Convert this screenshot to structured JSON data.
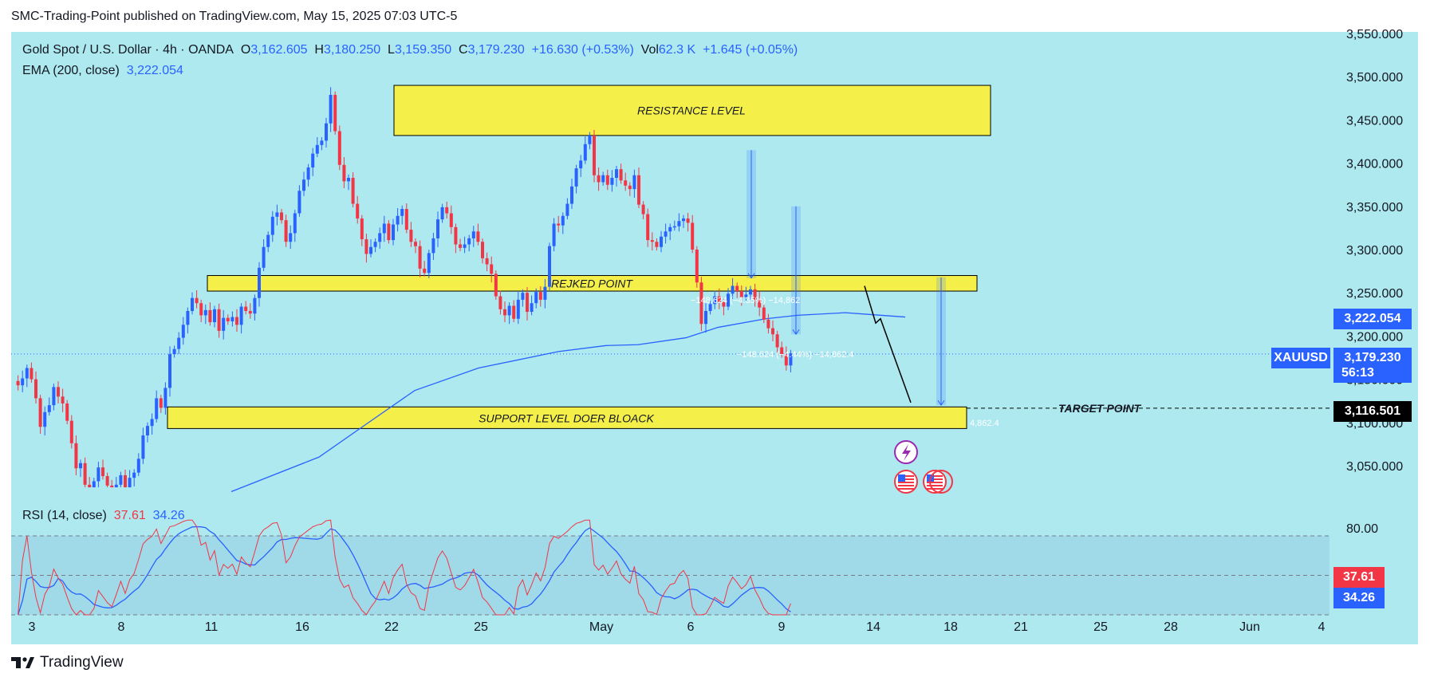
{
  "header": {
    "published_line": "SMC-Trading-Point published on TradingView.com, May 15, 2025 07:03 UTC-5"
  },
  "legend": {
    "symbol_line": "Gold Spot / U.S. Dollar · 4h · OANDA",
    "o_label": "O",
    "o_value": "3,162.605",
    "h_label": "H",
    "h_value": "3,180.250",
    "l_label": "L",
    "l_value": "3,159.350",
    "c_label": "C",
    "c_value": "3,179.230",
    "change": "+16.630 (+0.53%)",
    "vol_label": "Vol",
    "vol_value": "62.3 K",
    "vol_change": "+1.645 (+0.05%)",
    "ema_label": "EMA (200, close)",
    "ema_value": "3,222.054",
    "rsi_label": "RSI (14, close)",
    "rsi_value": "37.61",
    "rsi_ma_value": "34.26"
  },
  "tags": {
    "ema_tag": "3,222.054",
    "symbol_tag": "XAUUSD",
    "price_tag": "3,179.230",
    "countdown_tag": "56:13",
    "target_tag": "3,116.501",
    "rsi_tag": "37.61",
    "rsi_ma_tag": "34.26"
  },
  "annotations": {
    "resistance": "RESISTANCE LEVEL",
    "rejected": "REJKED POINT",
    "support": "SUPPORT LEVEL DOER BLOACK",
    "target": "TARGET POINT",
    "measure1": "−148.624 (−4.35%) −14,862",
    "measure2": "−148.624 (−4.44%) −14,862.4",
    "measure3": "4,862.4"
  },
  "colors": {
    "background": "#aee9f0",
    "up": "#2962ff",
    "down": "#f23645",
    "zone": "#f5ef4a",
    "ema": "#2962ff",
    "rsi": "#f23645",
    "rsi_ma": "#2962ff"
  },
  "footer": {
    "brand": "TradingView",
    "logo_icon": "tradingview-logo-icon"
  },
  "chart_data": [
    {
      "type": "candlestick",
      "title": "Gold Spot / U.S. Dollar · 4h · OANDA",
      "ylim": [
        3025,
        3550
      ],
      "y_ticks": [
        "3,550.000",
        "3,500.000",
        "3,450.000",
        "3,400.000",
        "3,350.000",
        "3,300.000",
        "3,250.000",
        "3,200.000",
        "3,150.000",
        "3,100.000",
        "3,050.000"
      ],
      "x_ticks": [
        "3",
        "8",
        "11",
        "16",
        "22",
        "25",
        "May",
        "6",
        "9",
        "14",
        "18",
        "21",
        "25",
        "28",
        "Jun",
        "4"
      ],
      "closes": [
        3148,
        3143,
        3151,
        3163,
        3150,
        3128,
        3095,
        3112,
        3120,
        3141,
        3130,
        3122,
        3102,
        3076,
        3047,
        3053,
        3028,
        3024,
        3032,
        3048,
        3038,
        3027,
        3019,
        3028,
        3039,
        3024,
        3036,
        3042,
        3058,
        3085,
        3096,
        3104,
        3128,
        3117,
        3140,
        3179,
        3185,
        3198,
        3213,
        3229,
        3244,
        3238,
        3224,
        3230,
        3216,
        3231,
        3206,
        3221,
        3217,
        3222,
        3213,
        3234,
        3229,
        3226,
        3244,
        3279,
        3303,
        3317,
        3338,
        3343,
        3334,
        3309,
        3319,
        3342,
        3368,
        3381,
        3395,
        3411,
        3421,
        3426,
        3446,
        3479,
        3437,
        3398,
        3379,
        3383,
        3353,
        3336,
        3312,
        3295,
        3303,
        3309,
        3319,
        3330,
        3311,
        3329,
        3339,
        3347,
        3323,
        3309,
        3304,
        3278,
        3273,
        3296,
        3313,
        3335,
        3349,
        3342,
        3326,
        3306,
        3302,
        3306,
        3313,
        3321,
        3309,
        3290,
        3283,
        3272,
        3246,
        3231,
        3224,
        3235,
        3220,
        3242,
        3250,
        3228,
        3238,
        3251,
        3242,
        3257,
        3304,
        3330,
        3328,
        3339,
        3353,
        3373,
        3394,
        3403,
        3422,
        3432,
        3386,
        3378,
        3386,
        3375,
        3383,
        3393,
        3380,
        3374,
        3370,
        3386,
        3352,
        3341,
        3311,
        3309,
        3303,
        3315,
        3321,
        3326,
        3327,
        3333,
        3336,
        3331,
        3300,
        3262,
        3214,
        3229,
        3237,
        3246,
        3239,
        3234,
        3249,
        3258,
        3252,
        3245,
        3248,
        3254,
        3242,
        3233,
        3219,
        3209,
        3202,
        3187,
        3179,
        3166,
        3180
      ]
    },
    {
      "type": "line",
      "title": "RSI (14, close)",
      "ylim": [
        0,
        100
      ],
      "y_ticks": [
        "80.00"
      ],
      "series": [
        {
          "name": "RSI (14, close)",
          "last": 37.61
        },
        {
          "name": "RSI-based MA",
          "last": 34.26
        }
      ]
    }
  ]
}
